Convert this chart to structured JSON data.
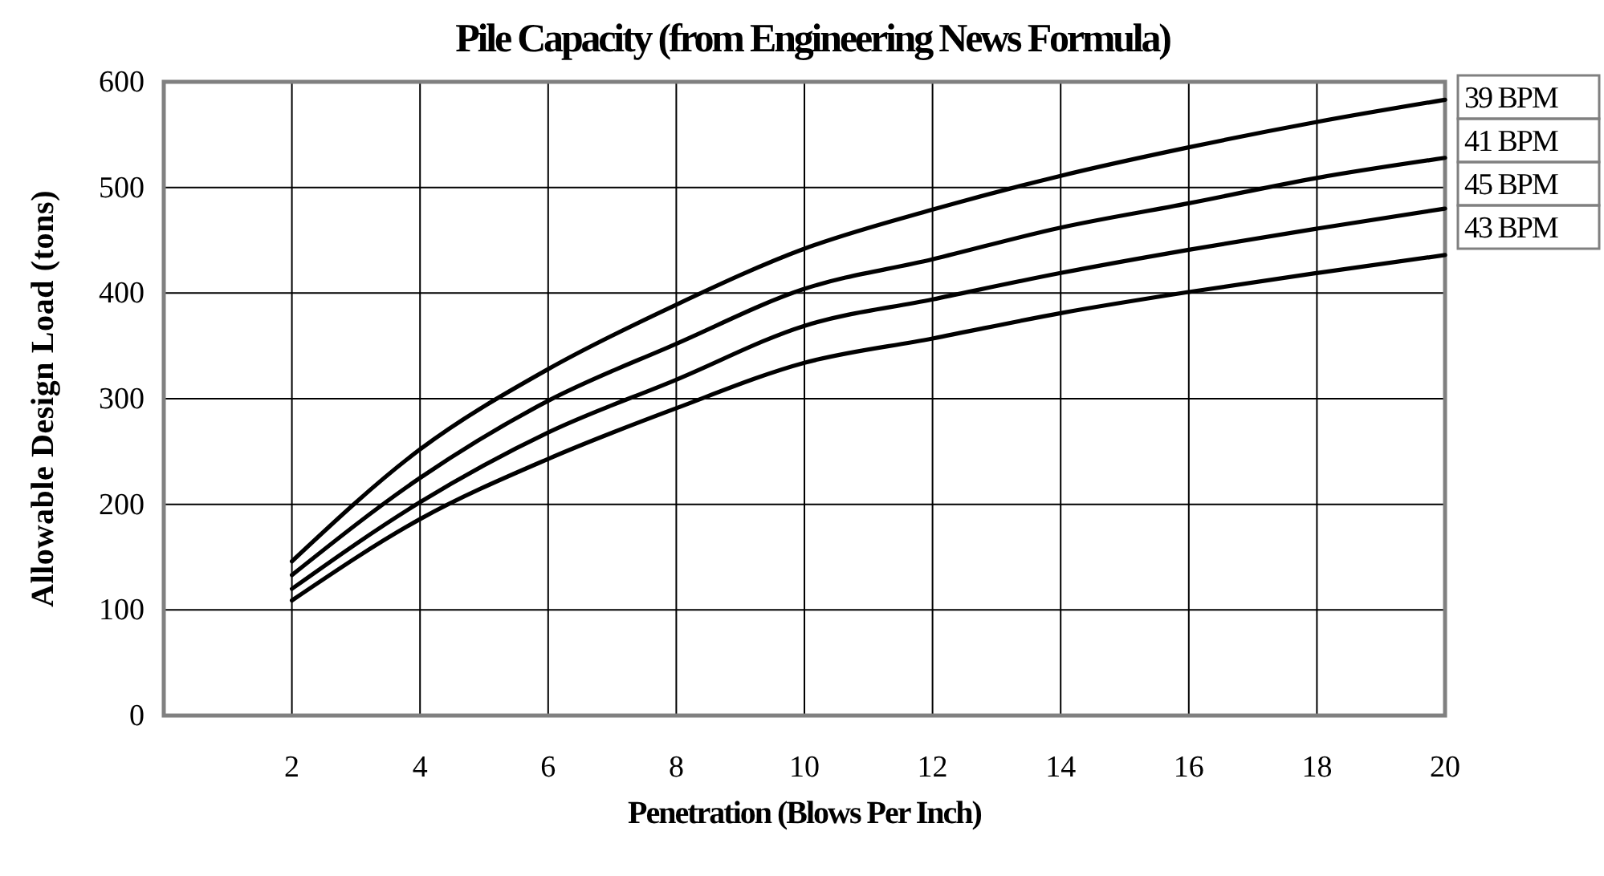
{
  "chart_data": {
    "type": "line",
    "title": "Pile Capacity (from Engineering News Formula)",
    "xlabel": "Penetration (Blows Per Inch)",
    "ylabel": "Allowable Design Load (tons)",
    "x": [
      2,
      4,
      6,
      8,
      10,
      12,
      14,
      16,
      18,
      20
    ],
    "series": [
      {
        "name": "39 BPM",
        "color": "#000000",
        "values": [
          146,
          252,
          328,
          389,
          442,
          479,
          511,
          538,
          562,
          583
        ]
      },
      {
        "name": "41 BPM",
        "color": "#000000",
        "values": [
          133,
          225,
          298,
          352,
          404,
          432,
          462,
          485,
          509,
          528
        ]
      },
      {
        "name": "45 BPM",
        "color": "#000000",
        "values": [
          120,
          202,
          268,
          318,
          369,
          394,
          419,
          441,
          461,
          480
        ]
      },
      {
        "name": "43 BPM",
        "color": "#000000",
        "values": [
          109,
          186,
          243,
          291,
          334,
          357,
          381,
          401,
          419,
          436
        ]
      }
    ],
    "xlim": [
      0,
      20
    ],
    "xticks": [
      2,
      4,
      6,
      8,
      10,
      12,
      14,
      16,
      18,
      20
    ],
    "ylim": [
      0,
      600
    ],
    "yticks": [
      0,
      100,
      200,
      300,
      400,
      500,
      600
    ],
    "grid": true,
    "marker": "none",
    "line_style": "solid"
  }
}
